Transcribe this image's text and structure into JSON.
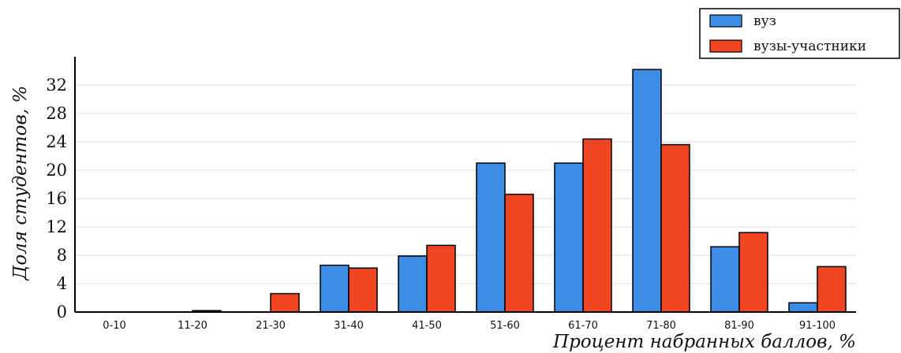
{
  "chart_data": {
    "type": "bar",
    "categories": [
      "0-10",
      "11-20",
      "21-30",
      "31-40",
      "41-50",
      "51-60",
      "61-70",
      "71-80",
      "81-90",
      "91-100"
    ],
    "series": [
      {
        "name": "вуз",
        "color": "#3b8de6",
        "values": [
          0,
          0,
          0,
          6.6,
          7.9,
          21.0,
          21.0,
          34.2,
          9.2,
          1.3
        ]
      },
      {
        "name": "вузы-участники",
        "color": "#f04523",
        "values": [
          0,
          0.2,
          2.6,
          6.2,
          9.4,
          16.6,
          24.4,
          23.6,
          11.2,
          6.4
        ]
      }
    ],
    "xlabel": "Процент набранных баллов, %",
    "ylabel": "Доля студентов, %",
    "yticks": [
      0,
      4,
      8,
      12,
      16,
      20,
      24,
      28,
      32
    ],
    "ylim": [
      0,
      35
    ],
    "grid": true,
    "legend_position": "top-right"
  }
}
